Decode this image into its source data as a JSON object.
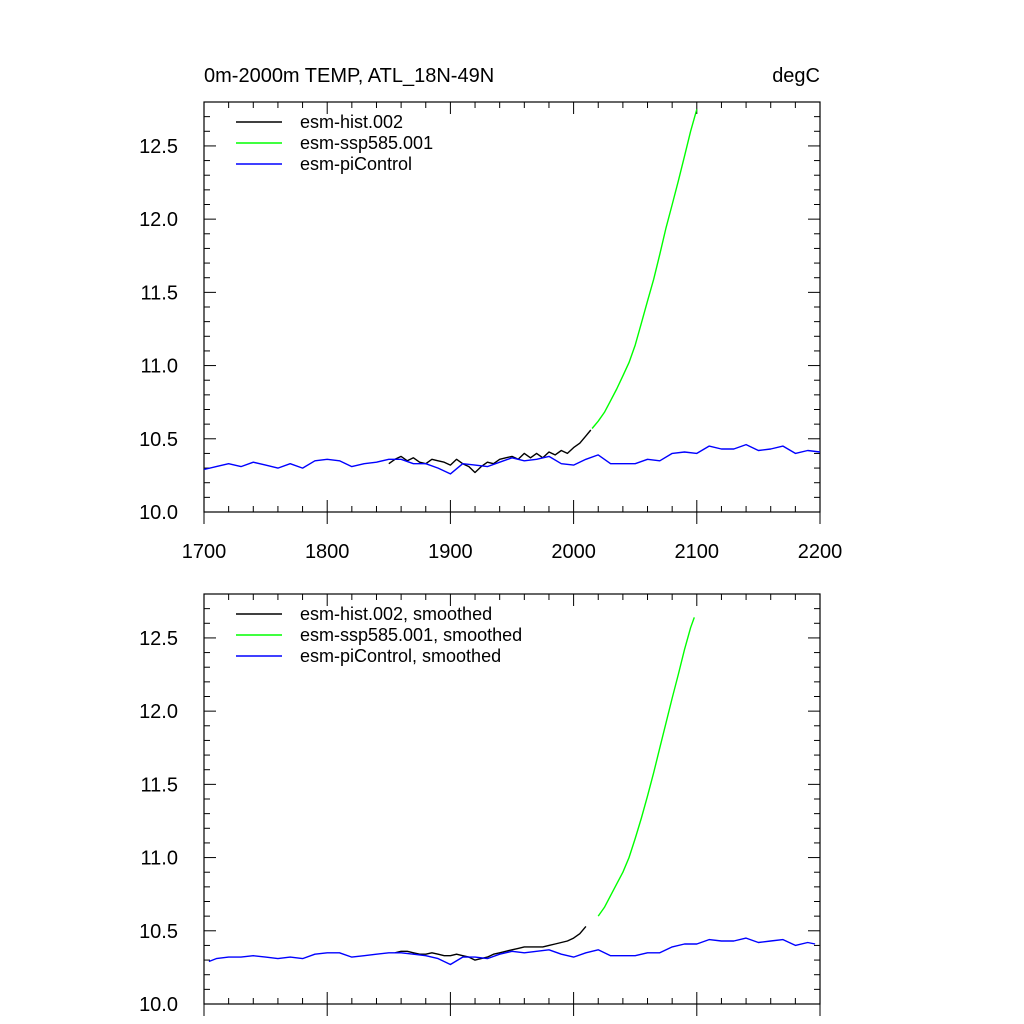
{
  "chart_data": [
    {
      "type": "line",
      "title": "0m-2000m TEMP, ATL_18N-49N",
      "units": "degC",
      "xlim": [
        1700,
        2200
      ],
      "ylim": [
        10.0,
        12.8
      ],
      "xticks": [
        1700,
        1800,
        1900,
        2000,
        2100,
        2200
      ],
      "xtick_labels": [
        "1700",
        "1800",
        "1900",
        "2000",
        "2100",
        "2200"
      ],
      "yticks": [
        10.0,
        10.5,
        11.0,
        11.5,
        12.0,
        12.5
      ],
      "ytick_labels": [
        "10.0",
        "10.5",
        "11.0",
        "11.5",
        "12.0",
        "12.5"
      ],
      "legend_position": "top-left",
      "grid": false,
      "series": [
        {
          "name": "esm-hist.002",
          "color": "#000000",
          "x": [
            1850,
            1855,
            1860,
            1865,
            1870,
            1875,
            1880,
            1885,
            1890,
            1895,
            1900,
            1905,
            1910,
            1915,
            1920,
            1925,
            1930,
            1935,
            1940,
            1945,
            1950,
            1955,
            1960,
            1965,
            1970,
            1975,
            1980,
            1985,
            1990,
            1995,
            2000,
            2005,
            2010,
            2014
          ],
          "y": [
            10.33,
            10.36,
            10.38,
            10.35,
            10.37,
            10.34,
            10.33,
            10.36,
            10.35,
            10.34,
            10.32,
            10.36,
            10.33,
            10.31,
            10.27,
            10.31,
            10.34,
            10.33,
            10.36,
            10.37,
            10.38,
            10.36,
            10.4,
            10.37,
            10.4,
            10.37,
            10.41,
            10.39,
            10.42,
            10.4,
            10.44,
            10.47,
            10.52,
            10.56
          ]
        },
        {
          "name": "esm-ssp585.001",
          "color": "#00ff00",
          "x": [
            2015,
            2020,
            2025,
            2030,
            2035,
            2040,
            2045,
            2050,
            2055,
            2060,
            2065,
            2070,
            2075,
            2080,
            2085,
            2090,
            2095,
            2100
          ],
          "y": [
            10.57,
            10.62,
            10.68,
            10.76,
            10.84,
            10.93,
            11.02,
            11.14,
            11.29,
            11.44,
            11.59,
            11.76,
            11.94,
            12.1,
            12.26,
            12.43,
            12.6,
            12.75
          ]
        },
        {
          "name": "esm-piControl",
          "color": "#0000ff",
          "x": [
            1700,
            1710,
            1720,
            1730,
            1740,
            1750,
            1760,
            1770,
            1780,
            1790,
            1800,
            1810,
            1820,
            1830,
            1840,
            1850,
            1860,
            1870,
            1880,
            1890,
            1900,
            1910,
            1920,
            1930,
            1940,
            1950,
            1960,
            1970,
            1980,
            1990,
            2000,
            2010,
            2020,
            2030,
            2040,
            2050,
            2060,
            2070,
            2080,
            2090,
            2100,
            2110,
            2120,
            2130,
            2140,
            2150,
            2160,
            2170,
            2180,
            2190,
            2200
          ],
          "y": [
            10.29,
            10.31,
            10.33,
            10.31,
            10.34,
            10.32,
            10.3,
            10.33,
            10.3,
            10.35,
            10.36,
            10.35,
            10.31,
            10.33,
            10.34,
            10.36,
            10.36,
            10.33,
            10.33,
            10.3,
            10.26,
            10.33,
            10.32,
            10.31,
            10.34,
            10.37,
            10.35,
            10.36,
            10.38,
            10.33,
            10.32,
            10.36,
            10.39,
            10.33,
            10.33,
            10.33,
            10.36,
            10.35,
            10.4,
            10.41,
            10.4,
            10.45,
            10.43,
            10.43,
            10.46,
            10.42,
            10.43,
            10.45,
            10.4,
            10.42,
            10.41
          ]
        }
      ]
    },
    {
      "type": "line",
      "xlim": [
        1700,
        2200
      ],
      "ylim": [
        10.0,
        12.8
      ],
      "xticks": [
        1700,
        1800,
        1900,
        2000,
        2100,
        2200
      ],
      "yticks": [
        10.0,
        10.5,
        11.0,
        11.5,
        12.0,
        12.5
      ],
      "ytick_labels": [
        "10.0",
        "10.5",
        "11.0",
        "11.5",
        "12.0",
        "12.5"
      ],
      "legend_position": "top-left",
      "grid": false,
      "series": [
        {
          "name": "esm-hist.002, smoothed",
          "color": "#000000",
          "x": [
            1855,
            1860,
            1865,
            1870,
            1875,
            1880,
            1885,
            1890,
            1895,
            1900,
            1905,
            1910,
            1915,
            1920,
            1925,
            1930,
            1935,
            1940,
            1945,
            1950,
            1955,
            1960,
            1965,
            1970,
            1975,
            1980,
            1985,
            1990,
            1995,
            2000,
            2005,
            2010
          ],
          "y": [
            10.35,
            10.36,
            10.36,
            10.35,
            10.34,
            10.34,
            10.35,
            10.34,
            10.33,
            10.33,
            10.34,
            10.33,
            10.32,
            10.3,
            10.31,
            10.32,
            10.34,
            10.35,
            10.36,
            10.37,
            10.38,
            10.39,
            10.39,
            10.39,
            10.39,
            10.4,
            10.41,
            10.42,
            10.43,
            10.45,
            10.48,
            10.53
          ]
        },
        {
          "name": "esm-ssp585.001, smoothed",
          "color": "#00ff00",
          "x": [
            2020,
            2025,
            2030,
            2035,
            2040,
            2045,
            2050,
            2055,
            2060,
            2065,
            2070,
            2075,
            2080,
            2085,
            2090,
            2095,
            2098
          ],
          "y": [
            10.6,
            10.66,
            10.74,
            10.82,
            10.9,
            11.0,
            11.13,
            11.27,
            11.42,
            11.58,
            11.75,
            11.92,
            12.09,
            12.25,
            12.42,
            12.57,
            12.64
          ]
        },
        {
          "name": "esm-piControl, smoothed",
          "color": "#0000ff",
          "x": [
            1704,
            1710,
            1720,
            1730,
            1740,
            1750,
            1760,
            1770,
            1780,
            1790,
            1800,
            1810,
            1820,
            1830,
            1840,
            1850,
            1860,
            1870,
            1880,
            1890,
            1900,
            1910,
            1920,
            1930,
            1940,
            1950,
            1960,
            1970,
            1980,
            1990,
            2000,
            2010,
            2020,
            2030,
            2040,
            2050,
            2060,
            2070,
            2080,
            2090,
            2100,
            2110,
            2120,
            2130,
            2140,
            2150,
            2160,
            2170,
            2180,
            2190,
            2196
          ],
          "y": [
            10.29,
            10.31,
            10.32,
            10.32,
            10.33,
            10.32,
            10.31,
            10.32,
            10.31,
            10.34,
            10.35,
            10.35,
            10.32,
            10.33,
            10.34,
            10.35,
            10.35,
            10.34,
            10.33,
            10.31,
            10.27,
            10.32,
            10.32,
            10.31,
            10.34,
            10.36,
            10.35,
            10.36,
            10.37,
            10.34,
            10.32,
            10.35,
            10.37,
            10.33,
            10.33,
            10.33,
            10.35,
            10.35,
            10.39,
            10.41,
            10.41,
            10.44,
            10.43,
            10.43,
            10.45,
            10.42,
            10.43,
            10.44,
            10.4,
            10.42,
            10.41
          ]
        }
      ]
    }
  ]
}
